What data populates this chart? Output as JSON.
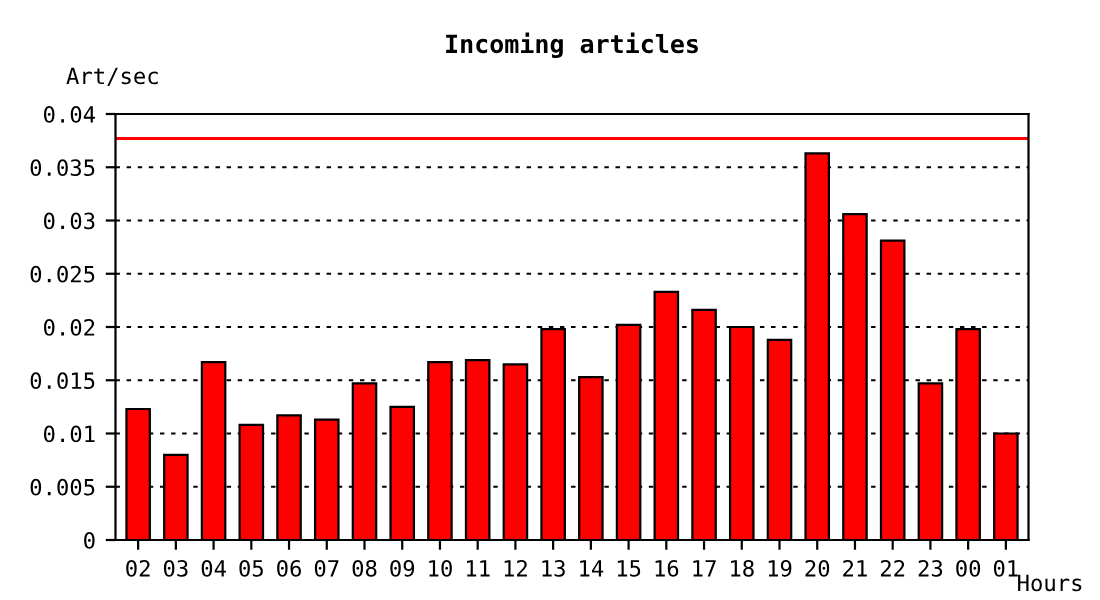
{
  "chart_data": {
    "type": "bar",
    "title": "Incoming articles",
    "ylabel": "Art/sec",
    "xlabel": "Hours",
    "categories": [
      "02",
      "03",
      "04",
      "05",
      "06",
      "07",
      "08",
      "09",
      "10",
      "11",
      "12",
      "13",
      "14",
      "15",
      "16",
      "17",
      "18",
      "19",
      "20",
      "21",
      "22",
      "23",
      "00",
      "01"
    ],
    "values": [
      0.0123,
      0.008,
      0.0167,
      0.0108,
      0.0117,
      0.0113,
      0.0147,
      0.0125,
      0.0167,
      0.0169,
      0.0165,
      0.0198,
      0.0153,
      0.0202,
      0.0233,
      0.0216,
      0.02,
      0.0188,
      0.0363,
      0.0306,
      0.0281,
      0.0147,
      0.0198,
      0.01
    ],
    "color": "#ff0000",
    "ylim": [
      0,
      0.04
    ],
    "yticks": [
      {
        "value": 0,
        "label": "0"
      },
      {
        "value": 0.005,
        "label": "0.005"
      },
      {
        "value": 0.01,
        "label": "0.01"
      },
      {
        "value": 0.015,
        "label": "0.015"
      },
      {
        "value": 0.02,
        "label": "0.02"
      },
      {
        "value": 0.025,
        "label": "0.025"
      },
      {
        "value": 0.03,
        "label": "0.03"
      },
      {
        "value": 0.035,
        "label": "0.035"
      },
      {
        "value": 0.04,
        "label": "0.04"
      }
    ],
    "grid": "y",
    "ref_lines": [
      {
        "axis": "y",
        "value": 0.0377,
        "color": "#ff0000"
      }
    ]
  }
}
